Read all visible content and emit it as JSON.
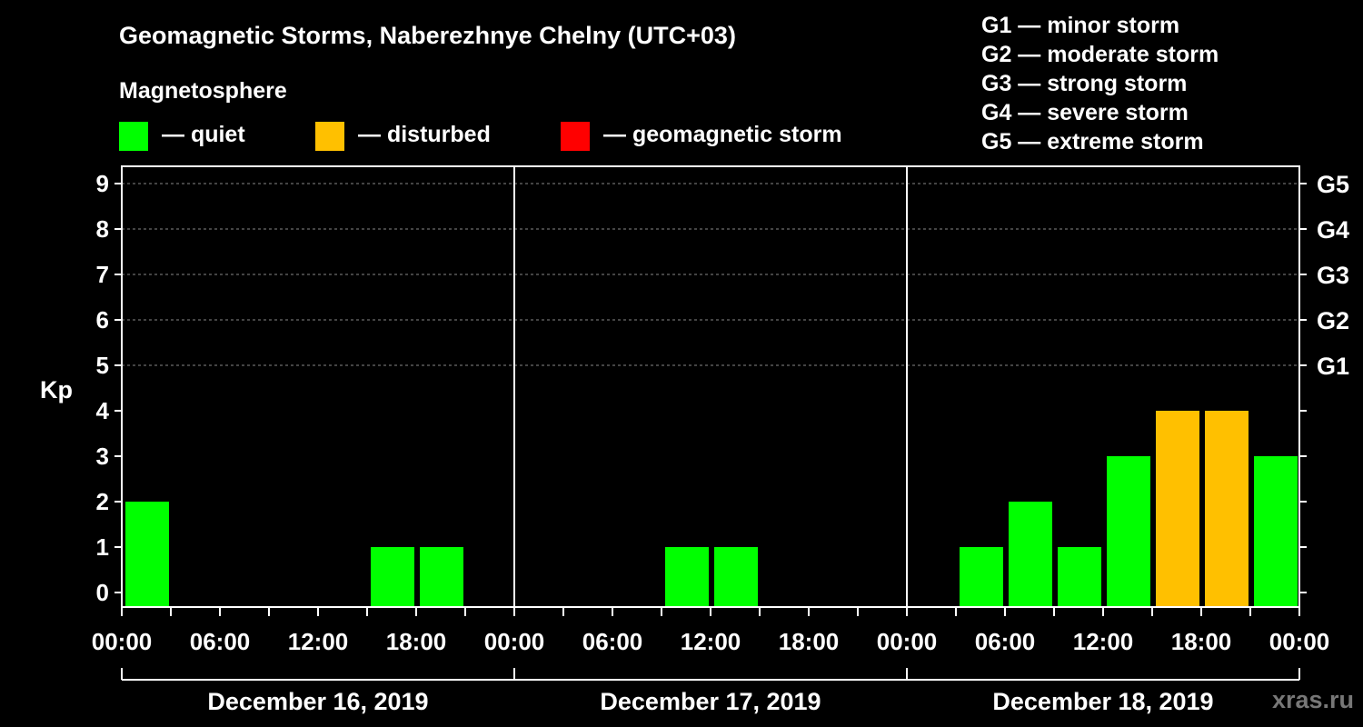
{
  "title": "Geomagnetic Storms, Naberezhnye Chelny (UTC+03)",
  "subtitle": "Magnetosphere",
  "legend": [
    {
      "label": "— quiet",
      "color": "#00ff00"
    },
    {
      "label": "— disturbed",
      "color": "#ffc000"
    },
    {
      "label": "— geomagnetic storm",
      "color": "#ff0000"
    }
  ],
  "storm_scale": [
    "G1 — minor storm",
    "G2 — moderate storm",
    "G3 — strong storm",
    "G4 — severe storm",
    "G5 — extreme storm"
  ],
  "brand": "xras.ru",
  "colors": {
    "quiet": "#00ff00",
    "disturbed": "#ffc000",
    "storm": "#ff0000",
    "background": "#000000",
    "axis": "#ffffff",
    "grid": "#888888"
  },
  "chart_data": {
    "type": "bar",
    "ylabel": "Kp",
    "ylim": [
      0,
      9
    ],
    "yticks": [
      "0",
      "1",
      "2",
      "3",
      "4",
      "5",
      "6",
      "7",
      "8",
      "9"
    ],
    "right_ticks": [
      {
        "kp": 5,
        "label": "G1"
      },
      {
        "kp": 6,
        "label": "G2"
      },
      {
        "kp": 7,
        "label": "G3"
      },
      {
        "kp": 8,
        "label": "G4"
      },
      {
        "kp": 9,
        "label": "G5"
      }
    ],
    "grid_kp": [
      5,
      6,
      7,
      8,
      9
    ],
    "days": [
      "December 16, 2019",
      "December 17, 2019",
      "December 18, 2019"
    ],
    "xtick_labels": [
      "00:00",
      "06:00",
      "12:00",
      "18:00",
      "00:00",
      "06:00",
      "12:00",
      "18:00",
      "00:00",
      "06:00",
      "12:00",
      "18:00",
      "00:00"
    ],
    "interval_hours": 3,
    "kp_values": [
      [
        2,
        0,
        0,
        0,
        0,
        1,
        1,
        0
      ],
      [
        0,
        0,
        0,
        1,
        1,
        0,
        0,
        0
      ],
      [
        0,
        1,
        2,
        1,
        3,
        4,
        4,
        3
      ]
    ]
  }
}
